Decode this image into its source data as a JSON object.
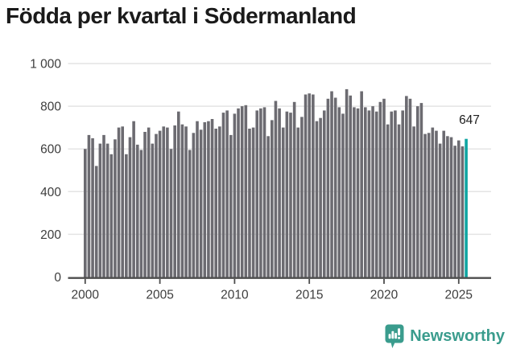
{
  "title": "Födda per kvartal i Södermanland",
  "footer": {
    "brand": "Newsworthy",
    "logo_icon": "bar-chart-exclamation-badge"
  },
  "colors": {
    "bar": "#6c6b71",
    "highlight": "#0ea5a2",
    "brand": "#3a9c8d",
    "title": "#1a1a1a",
    "axis_text": "#3d3d3d",
    "grid": "#e4e4e4",
    "axis_line": "#4d4d4d"
  },
  "chart_data": {
    "type": "bar",
    "title": "Födda per kvartal i Södermanland",
    "xlabel": "",
    "ylabel": "",
    "ylim": [
      0,
      1000
    ],
    "grid": true,
    "legend": false,
    "frequency": "quarterly",
    "start_year": 2000,
    "start_quarter": 1,
    "y_ticks": [
      {
        "value": 0,
        "label": "0"
      },
      {
        "value": 200,
        "label": "200"
      },
      {
        "value": 400,
        "label": "400"
      },
      {
        "value": 600,
        "label": "600"
      },
      {
        "value": 800,
        "label": "800"
      },
      {
        "value": 1000,
        "label": "1 000"
      }
    ],
    "x_ticks": [
      {
        "year": 2000,
        "label": "2000"
      },
      {
        "year": 2005,
        "label": "2005"
      },
      {
        "year": 2010,
        "label": "2010"
      },
      {
        "year": 2015,
        "label": "2015"
      },
      {
        "year": 2020,
        "label": "2020"
      },
      {
        "year": 2025,
        "label": "2025"
      }
    ],
    "values": [
      600,
      665,
      650,
      520,
      625,
      665,
      625,
      575,
      645,
      700,
      705,
      575,
      655,
      730,
      620,
      595,
      680,
      700,
      625,
      670,
      685,
      705,
      700,
      600,
      710,
      775,
      715,
      705,
      595,
      675,
      730,
      690,
      725,
      730,
      740,
      695,
      705,
      770,
      780,
      665,
      765,
      790,
      800,
      805,
      695,
      700,
      780,
      790,
      795,
      660,
      735,
      825,
      790,
      700,
      775,
      770,
      820,
      700,
      750,
      855,
      860,
      855,
      730,
      745,
      780,
      835,
      870,
      840,
      795,
      765,
      880,
      850,
      795,
      790,
      870,
      795,
      780,
      800,
      775,
      820,
      835,
      715,
      775,
      780,
      715,
      780,
      848,
      835,
      705,
      800,
      815,
      670,
      675,
      700,
      685,
      625,
      685,
      660,
      655,
      615,
      640,
      612,
      647
    ],
    "highlight_last": true,
    "annotation": {
      "text": "647",
      "value": 647,
      "position": "above-last-bar"
    }
  }
}
